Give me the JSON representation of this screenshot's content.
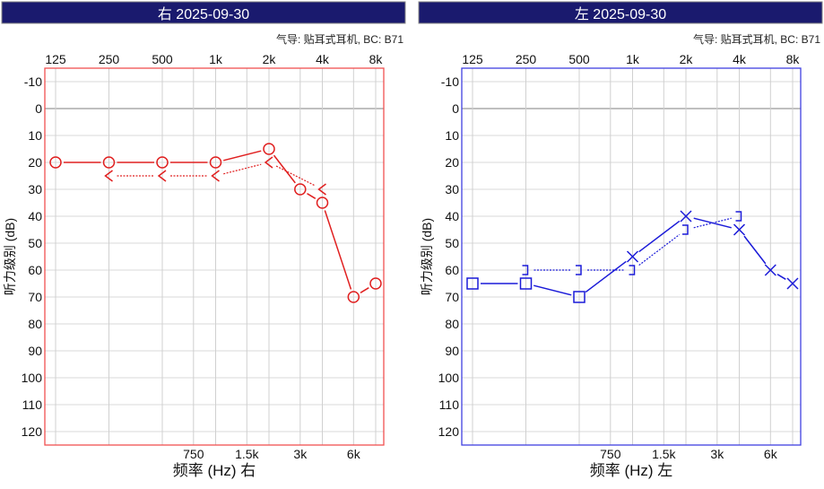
{
  "chart_data": [
    {
      "type": "line",
      "title": "右 2025-09-30",
      "subtitle": "气导: 贴耳式耳机, BC: B71",
      "ylabel": "听力级别 (dB)",
      "xlabel": "频率 (Hz) 右",
      "x_scale": "log2",
      "top_ticks": [
        "125",
        "250",
        "500",
        "1k",
        "2k",
        "4k",
        "8k"
      ],
      "bottom_ticks": [
        "750",
        "1.5k",
        "3k",
        "6k"
      ],
      "y_ticks": [
        "-10",
        "0",
        "10",
        "20",
        "30",
        "40",
        "50",
        "60",
        "70",
        "80",
        "90",
        "100",
        "110",
        "120"
      ],
      "ylim": [
        125,
        -15
      ],
      "y_inverted": true,
      "grid": true,
      "color": "#e02020",
      "frame_color": "#f05050",
      "series": [
        {
          "marker": "circle",
          "line": "solid",
          "x": [
            125,
            250,
            500,
            1000,
            2000,
            3000,
            4000,
            6000,
            8000
          ],
          "y": [
            20,
            20,
            20,
            20,
            15,
            30,
            35,
            70,
            65
          ]
        },
        {
          "marker": "left-angle",
          "line": "dotted",
          "x": [
            250,
            500,
            1000,
            2000,
            4000
          ],
          "y": [
            25,
            25,
            25,
            20,
            30
          ]
        }
      ]
    },
    {
      "type": "line",
      "title": "左 2025-09-30",
      "subtitle": "气导: 贴耳式耳机, BC: B71",
      "ylabel": "听力级别 (dB)",
      "xlabel": "频率 (Hz) 左",
      "x_scale": "log2",
      "top_ticks": [
        "125",
        "250",
        "500",
        "1k",
        "2k",
        "4k",
        "8k"
      ],
      "bottom_ticks": [
        "750",
        "1.5k",
        "3k",
        "6k"
      ],
      "y_ticks": [
        "-10",
        "0",
        "10",
        "20",
        "30",
        "40",
        "50",
        "60",
        "70",
        "80",
        "90",
        "100",
        "110",
        "120"
      ],
      "ylim": [
        125,
        -15
      ],
      "y_inverted": true,
      "grid": true,
      "color": "#1a1ad8",
      "frame_color": "#4040e0",
      "series": [
        {
          "marker": "mixed",
          "markers": [
            "square",
            "square",
            "square",
            "x",
            "x",
            "x",
            "x",
            "x"
          ],
          "line": "solid",
          "x": [
            125,
            250,
            500,
            1000,
            2000,
            4000,
            6000,
            8000
          ],
          "y": [
            65,
            65,
            70,
            55,
            40,
            45,
            60,
            65
          ]
        },
        {
          "marker": "right-bracket",
          "line": "dotted",
          "x": [
            250,
            500,
            1000,
            2000,
            4000
          ],
          "y": [
            60,
            60,
            60,
            45,
            40
          ]
        }
      ]
    }
  ],
  "header_color": "#1a1a6e"
}
